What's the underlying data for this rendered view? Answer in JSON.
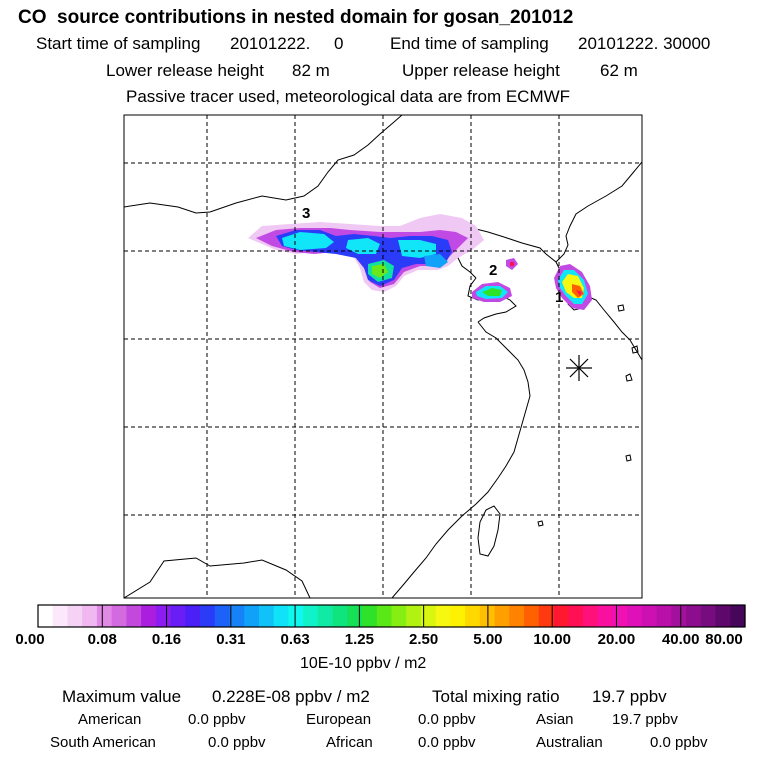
{
  "header": {
    "title": "CO  source contributions in nested domain for gosan_201012",
    "start_label": "Start time of sampling",
    "start_value": "20101222.     0",
    "end_label": "End time of sampling",
    "end_value": "20101222. 30000",
    "lower_label": "Lower release height",
    "lower_value": "82 m",
    "upper_label": "Upper release height",
    "upper_value": "62 m",
    "note": "Passive tracer used, meteorological data are from ECMWF"
  },
  "map": {
    "source_labels": [
      "3",
      "2",
      "1"
    ],
    "receptor_marker": "asterisk-marker"
  },
  "colorbar": {
    "ticks": [
      "0.00",
      "0.08",
      "0.16",
      "0.31",
      "0.63",
      "1.25",
      "2.50",
      "5.00",
      "10.00",
      "20.00",
      "40.00",
      "80.00"
    ],
    "colors": [
      "#ffffff",
      "#fbe9fb",
      "#f6d2f6",
      "#f0b7f0",
      "#e08ae6",
      "#d36ae0",
      "#c348dc",
      "#ab1ee0",
      "#8c1cf0",
      "#6a1ef6",
      "#4a20f6",
      "#2a3cf8",
      "#1c62f8",
      "#1682f8",
      "#10a2f8",
      "#10c2f8",
      "#10e2f8",
      "#10f8ee",
      "#10f2c8",
      "#10eaa4",
      "#10e47e",
      "#16e056",
      "#2ee22a",
      "#5ae816",
      "#86ee12",
      "#b2f212",
      "#d8f610",
      "#f6f812",
      "#fff200",
      "#ffd800",
      "#ffbe00",
      "#ffa000",
      "#ff8200",
      "#ff6000",
      "#ff3a10",
      "#ff1830",
      "#ff1054",
      "#ff107a",
      "#fa10a0",
      "#f010b4",
      "#e010b8",
      "#cc10b2",
      "#b810a8",
      "#a2109c",
      "#8c0e8e",
      "#760c7e",
      "#5e086c",
      "#46065a"
    ],
    "units": "10E-10 ppbv / m2"
  },
  "summary": {
    "max_label": "Maximum value",
    "max_value": "0.228E-08 ppbv / m2",
    "total_label": "Total mixing ratio",
    "total_value": "19.7 ppbv",
    "regions": [
      {
        "name": "American",
        "value": "0.0 ppbv"
      },
      {
        "name": "European",
        "value": "0.0 ppbv"
      },
      {
        "name": "Asian",
        "value": "19.7 ppbv"
      },
      {
        "name": "South American",
        "value": "0.0 ppbv"
      },
      {
        "name": "African",
        "value": "0.0 ppbv"
      },
      {
        "name": "Australian",
        "value": "0.0 ppbv"
      }
    ]
  }
}
